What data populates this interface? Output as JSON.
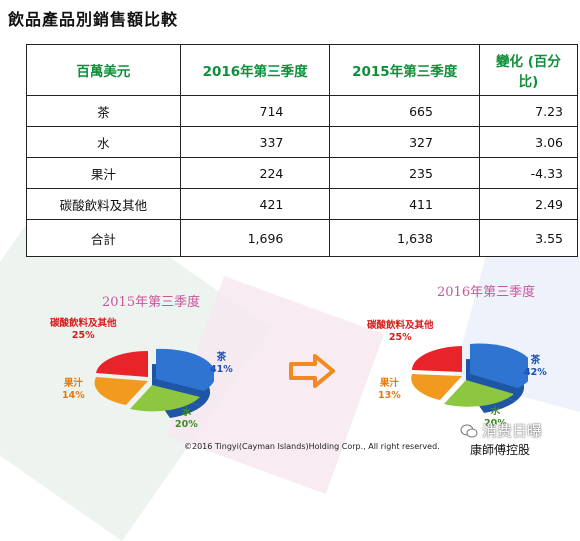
{
  "title": "飲品產品別銷售額比較",
  "table": {
    "headers": [
      "百萬美元",
      "2016年第三季度",
      "2015年第三季度",
      "變化 (百分比)"
    ],
    "rows": [
      [
        "茶",
        "714",
        "665",
        "7.23"
      ],
      [
        "水",
        "337",
        "327",
        "3.06"
      ],
      [
        "果汁",
        "224",
        "235",
        "-4.33"
      ],
      [
        "碳酸飲料及其他",
        "421",
        "411",
        "2.49"
      ]
    ],
    "total": [
      "合計",
      "1,696",
      "1,638",
      "3.55"
    ]
  },
  "pie_left": {
    "title": "2015年第三季度",
    "labels": {
      "carbonated": "碳酸飲料及其他",
      "carbonated_pct": "25%",
      "juice": "果汁",
      "juice_pct": "14%",
      "water": "水",
      "water_pct": "20%",
      "tea": "茶",
      "tea_pct": "41%"
    }
  },
  "pie_right": {
    "title": "2016年第三季度",
    "labels": {
      "carbonated": "碳酸飲料及其他",
      "carbonated_pct": "25%",
      "juice": "果汁",
      "juice_pct": "13%",
      "water": "水",
      "water_pct": "20%",
      "tea": "茶",
      "tea_pct": "42%"
    }
  },
  "colors": {
    "tea": "#2f74d0",
    "water": "#8dc63f",
    "juice": "#f29a1f",
    "carbonated": "#e8232a",
    "arrow": "#f28a22"
  },
  "icons": {
    "arrow": "right-arrow-icon",
    "wechat": "wechat-icon"
  },
  "footer": {
    "copyright": "©2016 Tingyi(Cayman Islands)Holding Corp., All right reserved.",
    "watermark": "消费日曝",
    "publisher": "康師傅控股"
  }
}
